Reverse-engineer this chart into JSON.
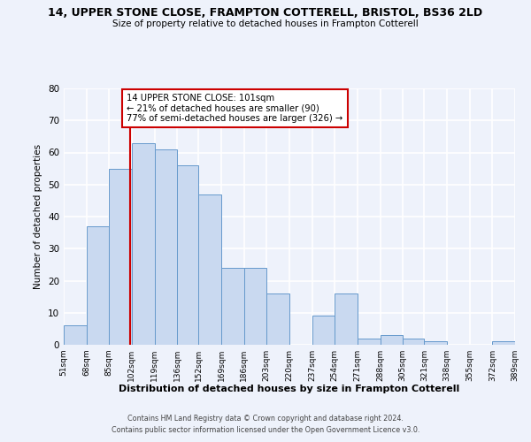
{
  "title": "14, UPPER STONE CLOSE, FRAMPTON COTTERELL, BRISTOL, BS36 2LD",
  "subtitle": "Size of property relative to detached houses in Frampton Cotterell",
  "xlabel": "Distribution of detached houses by size in Frampton Cotterell",
  "ylabel": "Number of detached properties",
  "bar_edges": [
    51,
    68,
    85,
    102,
    119,
    136,
    152,
    169,
    186,
    203,
    220,
    237,
    254,
    271,
    288,
    305,
    321,
    338,
    355,
    372,
    389
  ],
  "bar_heights": [
    6,
    37,
    55,
    63,
    61,
    56,
    47,
    24,
    24,
    16,
    0,
    9,
    16,
    2,
    3,
    2,
    1,
    0,
    0,
    1
  ],
  "bar_color": "#c9d9f0",
  "bar_edge_color": "#6699cc",
  "vline_x": 101,
  "vline_color": "#cc0000",
  "ylim": [
    0,
    80
  ],
  "annotation_title": "14 UPPER STONE CLOSE: 101sqm",
  "annotation_line1": "← 21% of detached houses are smaller (90)",
  "annotation_line2": "77% of semi-detached houses are larger (326) →",
  "annotation_box_color": "#cc0000",
  "footer_line1": "Contains HM Land Registry data © Crown copyright and database right 2024.",
  "footer_line2": "Contains public sector information licensed under the Open Government Licence v3.0.",
  "bg_color": "#eef2fb",
  "tick_labels": [
    "51sqm",
    "68sqm",
    "85sqm",
    "102sqm",
    "119sqm",
    "136sqm",
    "152sqm",
    "169sqm",
    "186sqm",
    "203sqm",
    "220sqm",
    "237sqm",
    "254sqm",
    "271sqm",
    "288sqm",
    "305sqm",
    "321sqm",
    "338sqm",
    "355sqm",
    "372sqm",
    "389sqm"
  ],
  "yticks": [
    0,
    10,
    20,
    30,
    40,
    50,
    60,
    70,
    80
  ]
}
